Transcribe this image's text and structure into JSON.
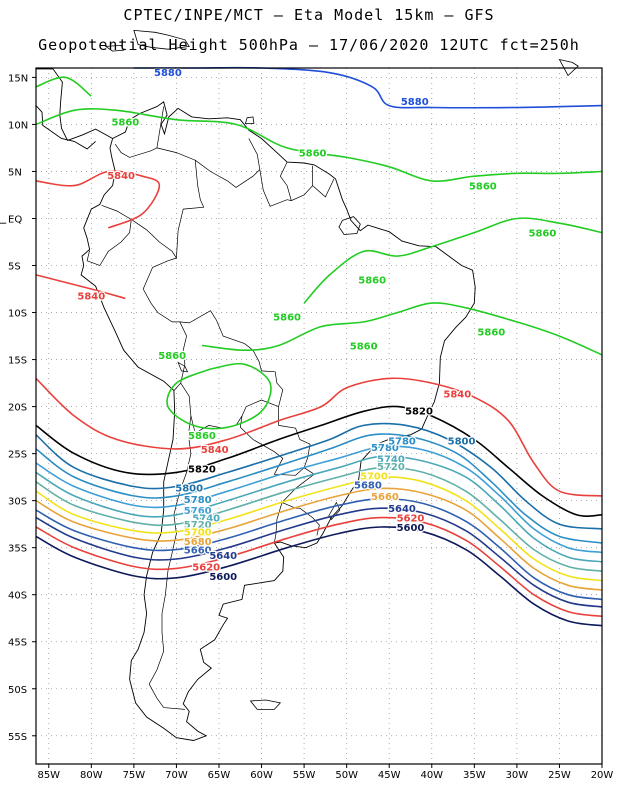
{
  "title_line1": "CPTEC/INPE/MCT –  Eta Model 15km – GFS",
  "title_line2": "Geopotential Height 500hPa – 17/06/2020 12UTC fct=250h",
  "lat_labels": [
    "15N",
    "10N",
    "5N",
    "EQ",
    "5S",
    "10S",
    "15S",
    "20S",
    "25S",
    "30S",
    "35S",
    "40S",
    "45S",
    "50S",
    "55S"
  ],
  "lon_labels": [
    "85W",
    "80W",
    "75W",
    "70W",
    "65W",
    "60W",
    "55W",
    "50W",
    "45W",
    "40W",
    "35W",
    "30W",
    "25W",
    "20W"
  ],
  "map_extent": {
    "lon_min": -86.5,
    "lon_max": -20,
    "lat_min": -58,
    "lat_max": 16
  },
  "contours": [
    {
      "value": 5880,
      "color": "#1f4fd8",
      "points": [
        [
          -75,
          16
        ],
        [
          -68,
          16
        ],
        [
          -60,
          16
        ],
        [
          -52,
          15.5
        ],
        [
          -47,
          14
        ],
        [
          -45,
          12
        ],
        [
          -40,
          11.8
        ],
        [
          -30,
          11.8
        ],
        [
          -20,
          12
        ]
      ]
    },
    {
      "value": 5860,
      "color": "#22cc22",
      "points": [
        [
          -86.5,
          10
        ],
        [
          -82,
          11.5
        ],
        [
          -77,
          11.5
        ],
        [
          -70,
          10.5
        ],
        [
          -63,
          10
        ],
        [
          -57,
          7.5
        ],
        [
          -50,
          6.5
        ],
        [
          -45,
          5.5
        ],
        [
          -40,
          4
        ],
        [
          -35,
          4.5
        ],
        [
          -30,
          4.8
        ],
        [
          -25,
          4.8
        ],
        [
          -20,
          5
        ]
      ]
    },
    {
      "value": 5860,
      "color": "#22cc22",
      "points": [
        [
          -86.5,
          14
        ],
        [
          -83,
          15
        ],
        [
          -80,
          13
        ]
      ]
    },
    {
      "value": 5860,
      "color": "#22cc22",
      "points": [
        [
          -55,
          -9
        ],
        [
          -52,
          -6
        ],
        [
          -48,
          -3.5
        ],
        [
          -44,
          -4
        ],
        [
          -40,
          -3
        ],
        [
          -35,
          -1.5
        ],
        [
          -30,
          0
        ],
        [
          -25,
          -0.5
        ],
        [
          -20,
          -1.5
        ]
      ]
    },
    {
      "value": 5860,
      "color": "#22cc22",
      "points": [
        [
          -67,
          -13.5
        ],
        [
          -62,
          -14
        ],
        [
          -58,
          -13.5
        ],
        [
          -53,
          -11.5
        ],
        [
          -48,
          -11
        ],
        [
          -44,
          -10
        ],
        [
          -40,
          -9
        ],
        [
          -36,
          -9.5
        ],
        [
          -30,
          -11
        ],
        [
          -25,
          -12.5
        ],
        [
          -20,
          -14.5
        ]
      ]
    },
    {
      "value": 5860,
      "color": "#22cc22",
      "points": [
        [
          -66,
          -16
        ],
        [
          -70,
          -17.5
        ],
        [
          -71,
          -20
        ],
        [
          -68,
          -22
        ],
        [
          -64,
          -22.2
        ],
        [
          -60,
          -20.5
        ],
        [
          -59,
          -17.5
        ],
        [
          -62,
          -15.5
        ],
        [
          -66,
          -16
        ]
      ]
    },
    {
      "value": 5840,
      "color": "#e8413c",
      "points": [
        [
          -86.5,
          4
        ],
        [
          -82,
          3.5
        ],
        [
          -78,
          5
        ],
        [
          -74,
          4.5
        ],
        [
          -72,
          3.5
        ],
        [
          -74,
          0.5
        ],
        [
          -78,
          -1
        ]
      ]
    },
    {
      "value": 5840,
      "color": "#e8413c",
      "points": [
        [
          -86.5,
          -6
        ],
        [
          -80,
          -7.5
        ],
        [
          -76,
          -8.5
        ]
      ]
    },
    {
      "value": 5840,
      "color": "#e8413c",
      "points": [
        [
          -86.5,
          -17
        ],
        [
          -82,
          -21
        ],
        [
          -77,
          -23.5
        ],
        [
          -70,
          -24.5
        ],
        [
          -64,
          -23.5
        ],
        [
          -58,
          -21.5
        ],
        [
          -53,
          -20
        ],
        [
          -50,
          -18
        ],
        [
          -45,
          -17
        ],
        [
          -40,
          -17.5
        ],
        [
          -35,
          -19
        ],
        [
          -31,
          -21.5
        ],
        [
          -28,
          -26
        ],
        [
          -25,
          -29
        ],
        [
          -20,
          -29.5
        ]
      ]
    },
    {
      "value": 5820,
      "color": "#000000",
      "points": [
        [
          -86.5,
          -22
        ],
        [
          -82,
          -25
        ],
        [
          -76,
          -27
        ],
        [
          -70,
          -27
        ],
        [
          -64,
          -25.5
        ],
        [
          -58,
          -23.5
        ],
        [
          -53,
          -22
        ],
        [
          -48,
          -20.5
        ],
        [
          -44,
          -20
        ],
        [
          -40,
          -21
        ],
        [
          -35,
          -23.5
        ],
        [
          -31,
          -26.5
        ],
        [
          -27,
          -29.5
        ],
        [
          -23,
          -31.5
        ],
        [
          -20,
          -31.5
        ]
      ]
    },
    {
      "value": 5800,
      "color": "#1a6fa8",
      "points": [
        [
          -86.5,
          -23
        ],
        [
          -82,
          -26.5
        ],
        [
          -75,
          -28.5
        ],
        [
          -70,
          -28.5
        ],
        [
          -64,
          -27
        ],
        [
          -57,
          -25
        ],
        [
          -52,
          -23.5
        ],
        [
          -48,
          -22
        ],
        [
          -43,
          -22
        ],
        [
          -38,
          -23.5
        ],
        [
          -33,
          -26.5
        ],
        [
          -29,
          -30
        ],
        [
          -25,
          -32.5
        ],
        [
          -20,
          -33
        ]
      ]
    },
    {
      "value": 5780,
      "color": "#2a8ec5",
      "points": [
        [
          -86.5,
          -24.5
        ],
        [
          -82,
          -27.5
        ],
        [
          -75,
          -29.5
        ],
        [
          -70,
          -29.5
        ],
        [
          -64,
          -28
        ],
        [
          -57,
          -26
        ],
        [
          -52,
          -24.5
        ],
        [
          -47,
          -23
        ],
        [
          -42,
          -23.3
        ],
        [
          -37,
          -25
        ],
        [
          -33,
          -28
        ],
        [
          -29,
          -31.5
        ],
        [
          -25,
          -33.8
        ],
        [
          -20,
          -34.5
        ]
      ]
    },
    {
      "value": 5760,
      "color": "#3e9fd6",
      "points": [
        [
          -86.5,
          -26
        ],
        [
          -82,
          -28.5
        ],
        [
          -75,
          -30.5
        ],
        [
          -70,
          -30.5
        ],
        [
          -64,
          -29
        ],
        [
          -57,
          -27
        ],
        [
          -51,
          -25.5
        ],
        [
          -46,
          -24.3
        ],
        [
          -41,
          -24.6
        ],
        [
          -36,
          -26.5
        ],
        [
          -32,
          -29.5
        ],
        [
          -28,
          -33
        ],
        [
          -24,
          -35
        ],
        [
          -20,
          -35.5
        ]
      ]
    },
    {
      "value": 5740,
      "color": "#4aa8b8",
      "points": [
        [
          -86.5,
          -27
        ],
        [
          -82,
          -29.5
        ],
        [
          -75,
          -31.5
        ],
        [
          -70,
          -31.5
        ],
        [
          -64,
          -30
        ],
        [
          -57,
          -28
        ],
        [
          -51,
          -26.5
        ],
        [
          -46,
          -25.3
        ],
        [
          -41,
          -25.8
        ],
        [
          -36,
          -27.5
        ],
        [
          -32,
          -30.5
        ],
        [
          -28,
          -34
        ],
        [
          -24,
          -36
        ],
        [
          -20,
          -36.5
        ]
      ]
    },
    {
      "value": 5720,
      "color": "#60b0a8",
      "points": [
        [
          -86.5,
          -28
        ],
        [
          -82,
          -30.5
        ],
        [
          -75,
          -32.3
        ],
        [
          -70,
          -32.5
        ],
        [
          -64,
          -31
        ],
        [
          -57,
          -29
        ],
        [
          -51,
          -27.5
        ],
        [
          -46,
          -26.5
        ],
        [
          -41,
          -27
        ],
        [
          -36,
          -29
        ],
        [
          -32,
          -32
        ],
        [
          -28,
          -35.2
        ],
        [
          -24,
          -37
        ],
        [
          -20,
          -37.5
        ]
      ]
    },
    {
      "value": 5700,
      "color": "#f2e21a",
      "points": [
        [
          -86.5,
          -29
        ],
        [
          -82,
          -31.5
        ],
        [
          -75,
          -33.2
        ],
        [
          -70,
          -33.3
        ],
        [
          -64,
          -32
        ],
        [
          -57,
          -30
        ],
        [
          -51,
          -28.5
        ],
        [
          -46,
          -27.5
        ],
        [
          -41,
          -28
        ],
        [
          -36,
          -30
        ],
        [
          -32,
          -33
        ],
        [
          -28,
          -36.2
        ],
        [
          -24,
          -38
        ],
        [
          -20,
          -38.5
        ]
      ]
    },
    {
      "value": 5680,
      "color": "#e8a43a",
      "points": [
        [
          -86.5,
          -30
        ],
        [
          -82,
          -32.3
        ],
        [
          -75,
          -34
        ],
        [
          -70,
          -34.2
        ],
        [
          -64,
          -33
        ],
        [
          -57,
          -31
        ],
        [
          -51,
          -29.5
        ],
        [
          -46,
          -28.7
        ],
        [
          -41,
          -29.2
        ],
        [
          -36,
          -31
        ],
        [
          -32,
          -34
        ],
        [
          -28,
          -37.2
        ],
        [
          -24,
          -39
        ],
        [
          -20,
          -39.5
        ]
      ]
    },
    {
      "value": 5660,
      "color": "#2f5fb0",
      "points": [
        [
          -86.5,
          -31
        ],
        [
          -82,
          -33.2
        ],
        [
          -75,
          -35
        ],
        [
          -70,
          -35.2
        ],
        [
          -64,
          -34
        ],
        [
          -57,
          -32
        ],
        [
          -51,
          -30.5
        ],
        [
          -46,
          -29.8
        ],
        [
          -41,
          -30.3
        ],
        [
          -36,
          -32.2
        ],
        [
          -32,
          -35
        ],
        [
          -28,
          -38.2
        ],
        [
          -24,
          -40
        ],
        [
          -20,
          -40.5
        ]
      ]
    },
    {
      "value": 5640,
      "color": "#223a8a",
      "points": [
        [
          -86.5,
          -31.8
        ],
        [
          -82,
          -34
        ],
        [
          -75,
          -36
        ],
        [
          -70,
          -36.2
        ],
        [
          -64,
          -35
        ],
        [
          -57,
          -33
        ],
        [
          -51,
          -31.5
        ],
        [
          -46,
          -30.8
        ],
        [
          -41,
          -31.3
        ],
        [
          -36,
          -33.2
        ],
        [
          -32,
          -36
        ],
        [
          -28,
          -39
        ],
        [
          -24,
          -40.8
        ],
        [
          -20,
          -41.3
        ]
      ]
    },
    {
      "value": 5620,
      "color": "#e8413c",
      "points": [
        [
          -86.5,
          -32.8
        ],
        [
          -82,
          -35
        ],
        [
          -75,
          -37
        ],
        [
          -70,
          -37.2
        ],
        [
          -64,
          -36
        ],
        [
          -57,
          -34
        ],
        [
          -51,
          -32.5
        ],
        [
          -46,
          -31.8
        ],
        [
          -41,
          -32.3
        ],
        [
          -36,
          -34.2
        ],
        [
          -32,
          -37
        ],
        [
          -28,
          -40
        ],
        [
          -24,
          -41.8
        ],
        [
          -20,
          -42.3
        ]
      ]
    },
    {
      "value": 5600,
      "color": "#0e1a5a",
      "points": [
        [
          -86.5,
          -33.8
        ],
        [
          -82,
          -36
        ],
        [
          -75,
          -38
        ],
        [
          -70,
          -38.2
        ],
        [
          -64,
          -37
        ],
        [
          -57,
          -35
        ],
        [
          -51,
          -33.5
        ],
        [
          -46,
          -32.8
        ],
        [
          -41,
          -33.3
        ],
        [
          -36,
          -35.2
        ],
        [
          -32,
          -38
        ],
        [
          -28,
          -41
        ],
        [
          -24,
          -42.8
        ],
        [
          -20,
          -43.3
        ]
      ]
    }
  ],
  "contour_labels": [
    {
      "text": "5880",
      "color": "#1f4fd8",
      "lon": -71,
      "lat": 15.6
    },
    {
      "text": "5880",
      "color": "#1f4fd8",
      "lon": -42,
      "lat": 12.5
    },
    {
      "text": "5860",
      "color": "#22cc22",
      "lon": -76,
      "lat": 10.3
    },
    {
      "text": "5860",
      "color": "#22cc22",
      "lon": -54,
      "lat": 7.0
    },
    {
      "text": "5860",
      "color": "#22cc22",
      "lon": -34,
      "lat": 3.5
    },
    {
      "text": "5860",
      "color": "#22cc22",
      "lon": -27,
      "lat": -1.5
    },
    {
      "text": "5860",
      "color": "#22cc22",
      "lon": -47,
      "lat": -6.5
    },
    {
      "text": "5860",
      "color": "#22cc22",
      "lon": -57,
      "lat": -10.4
    },
    {
      "text": "5860",
      "color": "#22cc22",
      "lon": -33,
      "lat": -12.0
    },
    {
      "text": "5860",
      "color": "#22cc22",
      "lon": -48,
      "lat": -13.5
    },
    {
      "text": "5860",
      "color": "#22cc22",
      "lon": -70.5,
      "lat": -14.5
    },
    {
      "text": "5860",
      "color": "#22cc22",
      "lon": -67,
      "lat": -23.0
    },
    {
      "text": "5840",
      "color": "#e8413c",
      "lon": -76.5,
      "lat": 4.6
    },
    {
      "text": "5840",
      "color": "#e8413c",
      "lon": -80,
      "lat": -8.2
    },
    {
      "text": "5840",
      "color": "#e8413c",
      "lon": -65.5,
      "lat": -24.5
    },
    {
      "text": "5840",
      "color": "#e8413c",
      "lon": -37,
      "lat": -18.6
    },
    {
      "text": "5820",
      "color": "#000000",
      "lon": -67,
      "lat": -26.6
    },
    {
      "text": "5820",
      "color": "#000000",
      "lon": -41.5,
      "lat": -20.4
    },
    {
      "text": "5800",
      "color": "#1a6fa8",
      "lon": -68.5,
      "lat": -28.6
    },
    {
      "text": "5800",
      "color": "#1a6fa8",
      "lon": -36.5,
      "lat": -23.6
    },
    {
      "text": "5780",
      "color": "#2a8ec5",
      "lon": -67.5,
      "lat": -29.8
    },
    {
      "text": "5780",
      "color": "#2a8ec5",
      "lon": -45.5,
      "lat": -24.3
    },
    {
      "text": "5780",
      "color": "#2a8ec5",
      "lon": -43.5,
      "lat": -23.6
    },
    {
      "text": "5760",
      "color": "#3e9fd6",
      "lon": -67.5,
      "lat": -31.0
    },
    {
      "text": "5740",
      "color": "#4aa8b8",
      "lon": -66.5,
      "lat": -31.8
    },
    {
      "text": "5740",
      "color": "#4aa8b8",
      "lon": -44.8,
      "lat": -25.5
    },
    {
      "text": "5720",
      "color": "#60b0a8",
      "lon": -67.5,
      "lat": -32.5
    },
    {
      "text": "5720",
      "color": "#60b0a8",
      "lon": -44.8,
      "lat": -26.3
    },
    {
      "text": "5700",
      "color": "#f2e21a",
      "lon": -67.5,
      "lat": -33.3
    },
    {
      "text": "5700",
      "color": "#f2e21a",
      "lon": -46.8,
      "lat": -27.3
    },
    {
      "text": "5680",
      "color": "#e8a43a",
      "lon": -67.5,
      "lat": -34.3
    },
    {
      "text": "5680",
      "color": "#2f5fb0",
      "lon": -47.5,
      "lat": -28.3
    },
    {
      "text": "5660",
      "color": "#e8a43a",
      "lon": -45.5,
      "lat": -29.5
    },
    {
      "text": "5660",
      "color": "#2f5fb0",
      "lon": -67.5,
      "lat": -35.2
    },
    {
      "text": "5640",
      "color": "#223a8a",
      "lon": -64.5,
      "lat": -35.8
    },
    {
      "text": "5640",
      "color": "#223a8a",
      "lon": -43.5,
      "lat": -30.8
    },
    {
      "text": "5620",
      "color": "#e8413c",
      "lon": -66.5,
      "lat": -37.0
    },
    {
      "text": "5620",
      "color": "#e8413c",
      "lon": -42.5,
      "lat": -31.8
    },
    {
      "text": "5600",
      "color": "#0e1a5a",
      "lon": -64.5,
      "lat": -38.0
    },
    {
      "text": "5600",
      "color": "#0e1a5a",
      "lon": -42.5,
      "lat": -32.8
    }
  ]
}
